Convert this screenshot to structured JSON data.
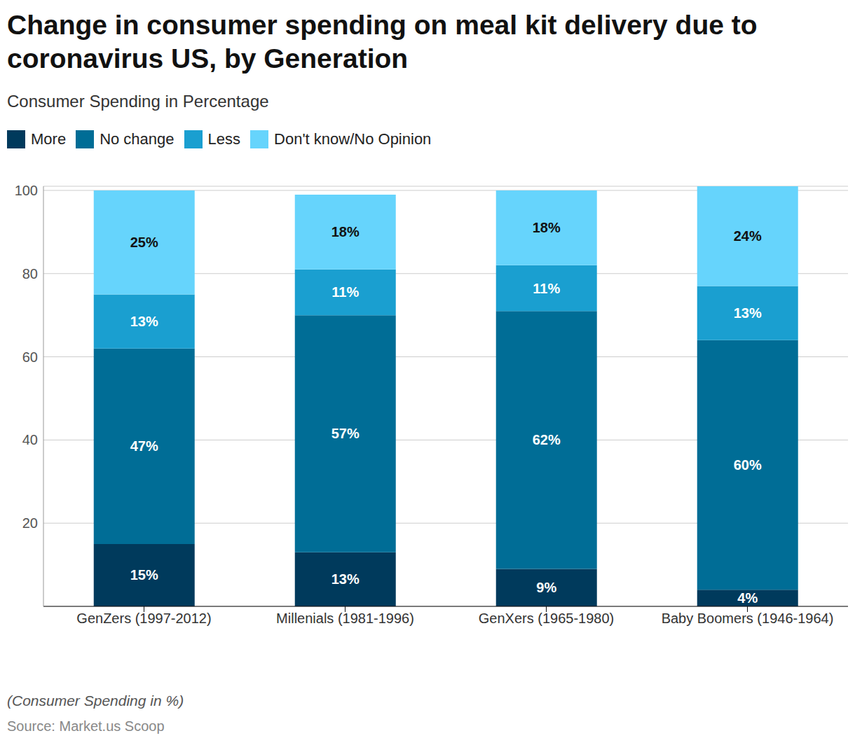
{
  "chart_data": {
    "type": "bar",
    "title": "Change in consumer spending on meal kit delivery due to coronavirus US, by Generation",
    "subtitle": "Consumer Spending in Percentage",
    "categories": [
      "GenZers (1997-2012)",
      "Millenials (1981-1996)",
      "GenXers (1965-1980)",
      "Baby Boomers (1946-1964)"
    ],
    "series": [
      {
        "name": "More",
        "color": "#003a5c",
        "values": [
          15,
          13,
          9,
          4
        ],
        "value_labels": [
          "15%",
          "13%",
          "9%",
          "4%"
        ]
      },
      {
        "name": "No change",
        "color": "#006d96",
        "values": [
          47,
          57,
          62,
          60
        ],
        "value_labels": [
          "47%",
          "57%",
          "62%",
          "60%"
        ]
      },
      {
        "name": "Less",
        "color": "#1a9fd0",
        "values": [
          13,
          11,
          11,
          13
        ],
        "value_labels": [
          "13%",
          "11%",
          "11%",
          "13%"
        ]
      },
      {
        "name": "Don't know/No Opinion",
        "color": "#66d4fc",
        "values": [
          25,
          18,
          18,
          24
        ],
        "value_labels": [
          "25%",
          "18%",
          "18%",
          "24%"
        ]
      }
    ],
    "stacked": true,
    "data_labels": true,
    "legend": "top-left",
    "grid": true,
    "ylim": [
      0,
      101
    ],
    "yticks": [
      20,
      40,
      60,
      80,
      100
    ],
    "caption": "(Consumer Spending in %)",
    "source": "Source: Market.us Scoop"
  }
}
